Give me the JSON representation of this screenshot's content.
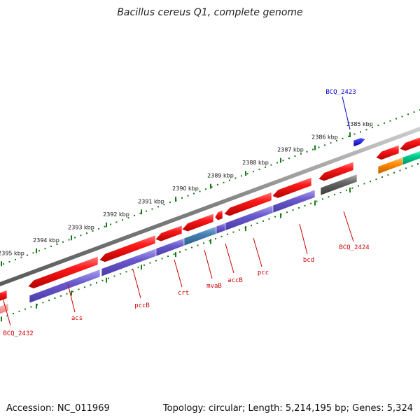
{
  "title": "Bacillus cereus Q1, complete genome",
  "footer": {
    "accession": "Accession: NC_011969",
    "summary": "Topology: circular; Length: 5,214,195 bp; Genes: 5,324"
  },
  "ruler": {
    "labels": [
      "2385 kbp",
      "2386 kbp",
      "2387 kbp",
      "2388 kbp",
      "2389 kbp",
      "2390 kbp",
      "2391 kbp",
      "2392 kbp",
      "2393 kbp",
      "2394 kbp",
      "2395 kbp"
    ]
  },
  "gene_labels": [
    {
      "text": "BCQ_2423",
      "color": "#0000cc"
    },
    {
      "text": "BCQ_2424",
      "color": "#cc0000"
    },
    {
      "text": "bcd",
      "color": "#cc0000"
    },
    {
      "text": "pcc",
      "color": "#cc0000"
    },
    {
      "text": "accB",
      "color": "#cc0000"
    },
    {
      "text": "mvaB",
      "color": "#cc0000"
    },
    {
      "text": "crt",
      "color": "#cc0000"
    },
    {
      "text": "pccB",
      "color": "#cc0000"
    },
    {
      "text": "acs",
      "color": "#cc0000"
    },
    {
      "text": "BCQ_2432",
      "color": "#cc0000"
    }
  ],
  "colors": {
    "gene_red": "#ee1111",
    "cds_purple": "#6a5acd",
    "cds_steelblue": "#4682b4",
    "backbone": "#8c8c8c",
    "ruler_green": "#1a7a1a",
    "plus_blue": "#0000ee",
    "cds_orange": "#ff8c00",
    "cds_green": "#00c080",
    "cds_gray": "#555555"
  }
}
